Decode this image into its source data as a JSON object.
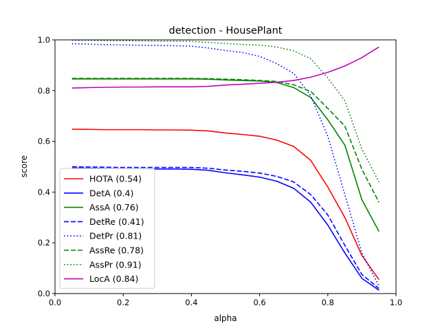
{
  "chart_data": {
    "type": "line",
    "title": "detection - HousePlant",
    "xlabel": "alpha",
    "ylabel": "score",
    "xlim": [
      0,
      1
    ],
    "ylim": [
      0,
      1
    ],
    "xticks": [
      "0.0",
      "0.2",
      "0.4",
      "0.6",
      "0.8",
      "1.0"
    ],
    "yticks": [
      "0.0",
      "0.2",
      "0.4",
      "0.6",
      "0.8",
      "1.0"
    ],
    "grid": false,
    "legend_position": "lower-left",
    "x": [
      0.05,
      0.1,
      0.15,
      0.2,
      0.25,
      0.3,
      0.35,
      0.4,
      0.45,
      0.5,
      0.55,
      0.6,
      0.65,
      0.7,
      0.75,
      0.8,
      0.85,
      0.9,
      0.95
    ],
    "series": [
      {
        "name": "HOTA (0.54)",
        "color": "#ff0000",
        "dash": "solid",
        "values": [
          0.648,
          0.647,
          0.646,
          0.646,
          0.646,
          0.645,
          0.645,
          0.644,
          0.641,
          0.633,
          0.627,
          0.62,
          0.605,
          0.58,
          0.525,
          0.42,
          0.3,
          0.15,
          0.055
        ]
      },
      {
        "name": "DetA (0.4)",
        "color": "#0000ff",
        "dash": "solid",
        "values": [
          0.495,
          0.494,
          0.493,
          0.492,
          0.492,
          0.491,
          0.491,
          0.49,
          0.486,
          0.476,
          0.468,
          0.459,
          0.443,
          0.415,
          0.36,
          0.27,
          0.16,
          0.06,
          0.013
        ]
      },
      {
        "name": "AssA (0.76)",
        "color": "#008000",
        "dash": "solid",
        "values": [
          0.846,
          0.846,
          0.846,
          0.846,
          0.846,
          0.846,
          0.846,
          0.846,
          0.845,
          0.842,
          0.84,
          0.838,
          0.832,
          0.812,
          0.773,
          0.685,
          0.585,
          0.37,
          0.245
        ]
      },
      {
        "name": "DetRe (0.41)",
        "color": "#0000ff",
        "dash": "dashed",
        "values": [
          0.5,
          0.499,
          0.498,
          0.497,
          0.497,
          0.497,
          0.497,
          0.497,
          0.494,
          0.487,
          0.482,
          0.475,
          0.462,
          0.44,
          0.39,
          0.31,
          0.19,
          0.075,
          0.02
        ]
      },
      {
        "name": "DetPr (0.81)",
        "color": "#0000ff",
        "dash": "dotted",
        "values": [
          0.985,
          0.983,
          0.981,
          0.98,
          0.979,
          0.978,
          0.977,
          0.975,
          0.968,
          0.958,
          0.95,
          0.935,
          0.907,
          0.868,
          0.78,
          0.62,
          0.39,
          0.16,
          0.03
        ]
      },
      {
        "name": "AssRe (0.78)",
        "color": "#008000",
        "dash": "dashed",
        "values": [
          0.848,
          0.848,
          0.848,
          0.848,
          0.848,
          0.848,
          0.848,
          0.848,
          0.847,
          0.845,
          0.843,
          0.84,
          0.836,
          0.823,
          0.797,
          0.73,
          0.66,
          0.49,
          0.36
        ]
      },
      {
        "name": "AssPr (0.91)",
        "color": "#008000",
        "dash": "dotted",
        "values": [
          0.998,
          0.998,
          0.997,
          0.997,
          0.996,
          0.995,
          0.995,
          0.994,
          0.99,
          0.986,
          0.982,
          0.979,
          0.972,
          0.957,
          0.925,
          0.85,
          0.76,
          0.57,
          0.44
        ]
      },
      {
        "name": "LocA (0.84)",
        "color": "#bf00bf",
        "dash": "solid",
        "values": [
          0.81,
          0.812,
          0.813,
          0.814,
          0.814,
          0.815,
          0.815,
          0.815,
          0.817,
          0.822,
          0.825,
          0.829,
          0.833,
          0.84,
          0.853,
          0.872,
          0.897,
          0.93,
          0.972
        ]
      }
    ]
  }
}
